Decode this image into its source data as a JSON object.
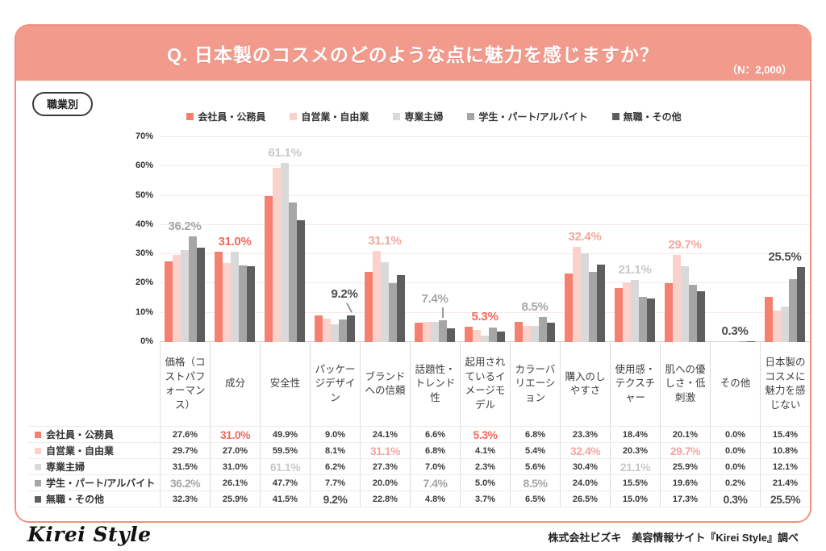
{
  "header": {
    "title": "Q. 日本製のコスメのどのような点に魅力を感じますか？",
    "n_label": "（N：2,000）"
  },
  "tag_label": "職業別",
  "colors": {
    "banner_bg": "#f29b8c",
    "card_border": "#f0907c"
  },
  "chart_data": {
    "type": "bar",
    "title": "Q. 日本製のコスメのどのような点に魅力を感じますか？",
    "ylim": [
      0,
      70
    ],
    "ytick_step": 10,
    "ytick_labels": [
      "0%",
      "10%",
      "20%",
      "30%",
      "40%",
      "50%",
      "60%",
      "70%"
    ],
    "grid": true,
    "legend_position": "top",
    "categories": [
      "価格（コストパフォーマンス）",
      "成分",
      "安全性",
      "パッケージデザイン",
      "ブランドへの信頼",
      "話題性・トレンド性",
      "起用されているイメージモデル",
      "カラーバリエーション",
      "購入のしやすさ",
      "使用感・テクスチャー",
      "肌への優しさ・低刺激",
      "その他",
      "日本製のコスメに魅力を感じない"
    ],
    "series": [
      {
        "name": "会社員・公務員",
        "color": "#f5806f",
        "text_color": "#ee6a5c",
        "values": [
          27.6,
          31.0,
          49.9,
          9.0,
          24.1,
          6.6,
          5.3,
          6.8,
          23.3,
          18.4,
          20.1,
          0.0,
          15.4
        ]
      },
      {
        "name": "自営業・自由業",
        "color": "#fad2cb",
        "text_color": "#f3a89e",
        "values": [
          29.7,
          27.0,
          59.5,
          8.1,
          31.1,
          6.8,
          4.1,
          5.4,
          32.4,
          20.3,
          29.7,
          0.0,
          10.8
        ]
      },
      {
        "name": "専業主婦",
        "color": "#d9d9d9",
        "text_color": "#c8c8c8",
        "values": [
          31.5,
          31.0,
          61.1,
          6.2,
          27.3,
          7.0,
          2.3,
          5.6,
          30.4,
          21.1,
          25.9,
          0.0,
          12.1
        ]
      },
      {
        "name": "学生・パート/アルバイト",
        "color": "#a6a6a6",
        "text_color": "#a6a6a6",
        "values": [
          36.2,
          26.1,
          47.7,
          7.7,
          20.0,
          7.4,
          5.0,
          8.5,
          24.0,
          15.5,
          19.6,
          0.2,
          21.4
        ]
      },
      {
        "name": "無職・その他",
        "color": "#5e5e5e",
        "text_color": "#4c4c4c",
        "values": [
          32.3,
          25.9,
          41.5,
          9.2,
          22.8,
          4.8,
          3.7,
          6.5,
          26.5,
          15.0,
          17.3,
          0.3,
          25.5
        ]
      }
    ],
    "annotations": [
      {
        "category_index": 0,
        "series_index": 3,
        "label": "36.2%",
        "leader": "none"
      },
      {
        "category_index": 1,
        "series_index": 0,
        "label": "31.0%",
        "leader": "none"
      },
      {
        "category_index": 2,
        "series_index": 2,
        "label": "61.1%",
        "leader": "none"
      },
      {
        "category_index": 3,
        "series_index": 4,
        "label": "9.2%",
        "leader": "diag"
      },
      {
        "category_index": 4,
        "series_index": 1,
        "label": "31.1%",
        "leader": "none"
      },
      {
        "category_index": 5,
        "series_index": 3,
        "label": "7.4%",
        "leader": "vert"
      },
      {
        "category_index": 6,
        "series_index": 0,
        "label": "5.3%",
        "leader": "none"
      },
      {
        "category_index": 7,
        "series_index": 3,
        "label": "8.5%",
        "leader": "none"
      },
      {
        "category_index": 8,
        "series_index": 1,
        "label": "32.4%",
        "leader": "none"
      },
      {
        "category_index": 9,
        "series_index": 2,
        "label": "21.1%",
        "leader": "none"
      },
      {
        "category_index": 10,
        "series_index": 1,
        "label": "29.7%",
        "leader": "none"
      },
      {
        "category_index": 11,
        "series_index": 4,
        "label": "0.3%",
        "leader": "none"
      },
      {
        "category_index": 12,
        "series_index": 4,
        "label": "25.5%",
        "leader": "none"
      }
    ]
  },
  "footer": {
    "logo_text": "Kirei Style",
    "source": "株式会社ビズキ　美容情報サイト『Kirei Style』調べ"
  }
}
